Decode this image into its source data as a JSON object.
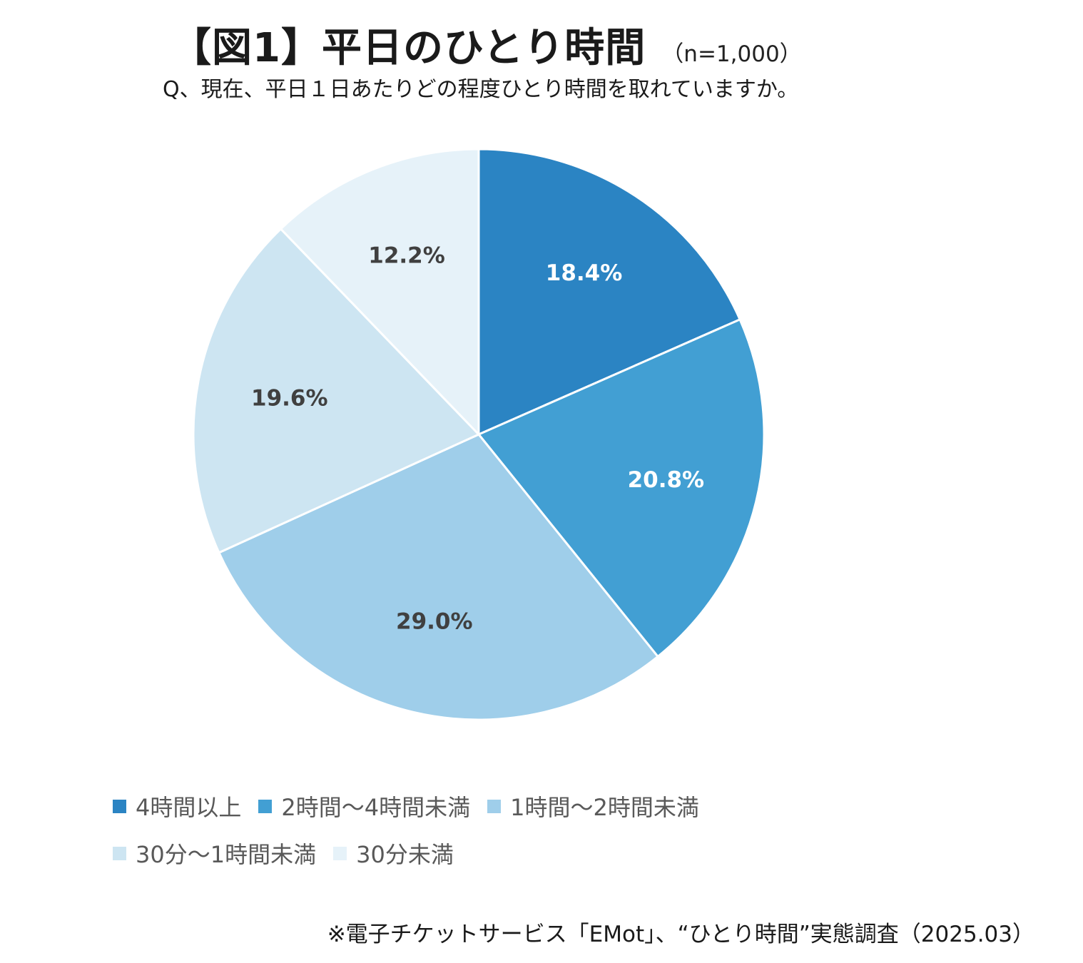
{
  "title": "【図1】平日のひとり時間",
  "sample": "（n=1,000）",
  "question": "Q、現在、平日１日あたりどの程度ひとり時間を取れていますか。",
  "footnote": "※電子チケットサービス「EMot」、“ひとり時間”実態調査（2025.03）",
  "chart_data": {
    "type": "pie",
    "title": "【図1】平日のひとり時間",
    "start_angle": "12 o'clock",
    "direction": "clockwise",
    "slices": [
      {
        "label": "4時間以上",
        "value": 18.4,
        "value_label": "18.4%",
        "color": "#2B84C3",
        "label_color": "#ffffff"
      },
      {
        "label": "2時間～4時間未満",
        "value": 20.8,
        "value_label": "20.8%",
        "color": "#429FD3",
        "label_color": "#ffffff"
      },
      {
        "label": "1時間～2時間未満",
        "value": 29.0,
        "value_label": "29.0%",
        "color": "#9FCEEA",
        "label_color": "#404040"
      },
      {
        "label": "30分～1時間未満",
        "value": 19.6,
        "value_label": "19.6%",
        "color": "#CDE5F2",
        "label_color": "#404040"
      },
      {
        "label": "30分未満",
        "value": 12.2,
        "value_label": "12.2%",
        "color": "#E6F2F9",
        "label_color": "#404040"
      }
    ],
    "legend_position": "bottom"
  }
}
